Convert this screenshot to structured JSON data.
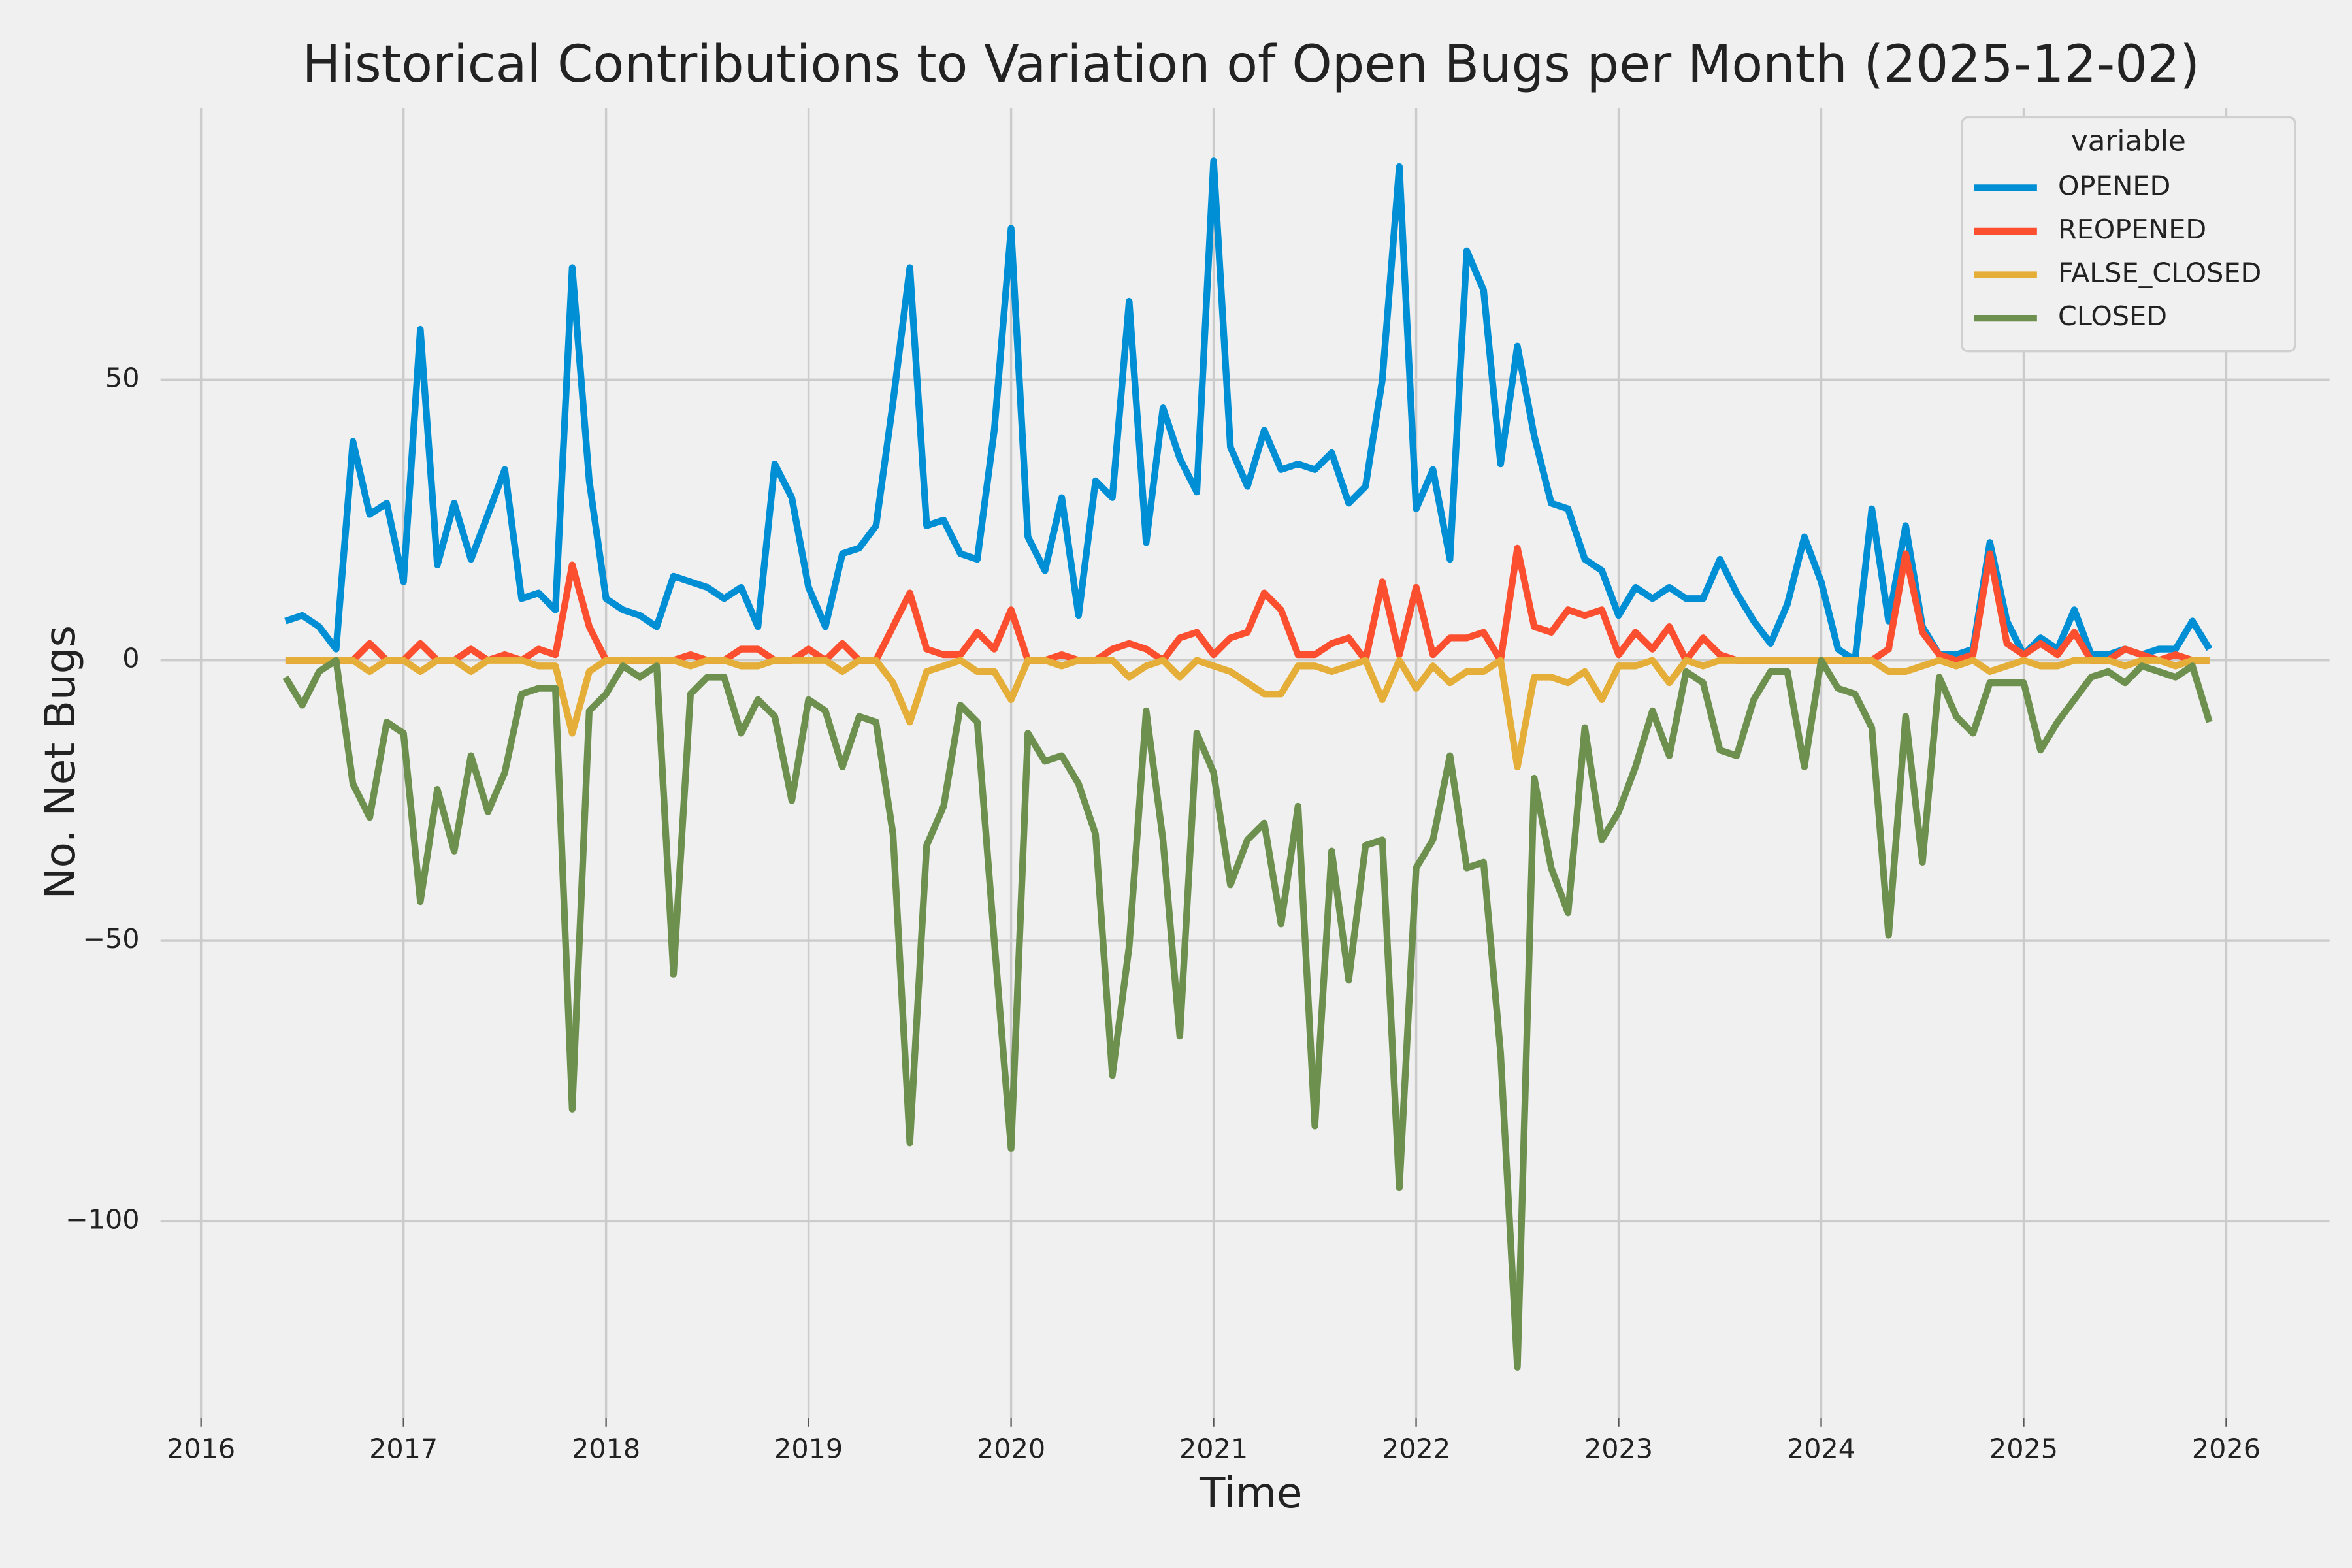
{
  "chart_data": {
    "type": "line",
    "title": "Historical Contributions to Variation of Open Bugs per Month (2025-12-02)",
    "xlabel": "Time",
    "ylabel": "No. Net Bugs",
    "legend_title": "variable",
    "legend_loc": "upper right",
    "grid": true,
    "xlim": [
      2015.8,
      2026.51
    ],
    "ylim": [
      -135,
      98.4
    ],
    "xticks": [
      2016,
      2017,
      2018,
      2019,
      2020,
      2021,
      2022,
      2023,
      2024,
      2025,
      2026
    ],
    "yticks": [
      {
        "value": -100,
        "label": "−100"
      },
      {
        "value": -50,
        "label": "−50"
      },
      0,
      50
    ],
    "x": [
      2016.417,
      2016.5,
      2016.583,
      2016.667,
      2016.75,
      2016.833,
      2016.917,
      2017,
      2017.083,
      2017.167,
      2017.25,
      2017.333,
      2017.417,
      2017.5,
      2017.583,
      2017.667,
      2017.75,
      2017.833,
      2017.917,
      2018,
      2018.083,
      2018.167,
      2018.25,
      2018.333,
      2018.417,
      2018.5,
      2018.583,
      2018.667,
      2018.75,
      2018.833,
      2018.917,
      2019,
      2019.083,
      2019.167,
      2019.25,
      2019.333,
      2019.417,
      2019.5,
      2019.583,
      2019.667,
      2019.75,
      2019.833,
      2019.917,
      2020,
      2020.083,
      2020.167,
      2020.25,
      2020.333,
      2020.417,
      2020.5,
      2020.583,
      2020.667,
      2020.75,
      2020.833,
      2020.917,
      2021,
      2021.083,
      2021.167,
      2021.25,
      2021.333,
      2021.417,
      2021.5,
      2021.583,
      2021.667,
      2021.75,
      2021.833,
      2021.917,
      2022,
      2022.083,
      2022.167,
      2022.25,
      2022.333,
      2022.417,
      2022.5,
      2022.583,
      2022.667,
      2022.75,
      2022.833,
      2022.917,
      2023,
      2023.083,
      2023.167,
      2023.25,
      2023.333,
      2023.417,
      2023.5,
      2023.583,
      2023.667,
      2023.75,
      2023.833,
      2023.917,
      2024,
      2024.083,
      2024.167,
      2024.25,
      2024.333,
      2024.417,
      2024.5,
      2024.583,
      2024.667,
      2024.75,
      2024.833,
      2024.917,
      2025,
      2025.083,
      2025.167,
      2025.25,
      2025.333,
      2025.417,
      2025.5,
      2025.583,
      2025.667,
      2025.75,
      2025.833,
      2025.917
    ],
    "series": [
      {
        "name": "OPENED",
        "color": "#008fd5",
        "values": [
          7,
          8,
          6,
          2,
          39,
          26,
          28,
          14,
          59,
          17,
          28,
          18,
          26,
          34,
          11,
          12,
          9,
          70,
          32,
          11,
          9,
          8,
          6,
          15,
          14,
          13,
          11,
          13,
          6,
          35,
          29,
          13,
          6,
          19,
          20,
          24,
          46,
          70,
          24,
          25,
          19,
          18,
          41,
          77,
          22,
          16,
          29,
          8,
          32,
          29,
          64,
          21,
          45,
          36,
          30,
          89,
          38,
          31,
          41,
          34,
          35,
          34,
          37,
          28,
          31,
          50,
          88,
          27,
          34,
          18,
          73,
          66,
          35,
          56,
          40,
          28,
          27,
          18,
          16,
          8,
          13,
          11,
          13,
          11,
          11,
          18,
          12,
          7,
          3,
          10,
          22,
          14,
          2,
          0,
          27,
          7,
          24,
          6,
          1,
          1,
          2,
          21,
          7,
          1,
          4,
          2,
          9,
          1,
          1,
          2,
          1,
          2,
          2,
          7,
          2
        ]
      },
      {
        "name": "REOPENED",
        "color": "#fc4f30",
        "values": [
          0,
          0,
          0,
          0,
          0,
          3,
          0,
          0,
          3,
          0,
          0,
          2,
          0,
          1,
          0,
          2,
          1,
          17,
          6,
          0,
          0,
          0,
          0,
          0,
          1,
          0,
          0,
          2,
          2,
          0,
          0,
          2,
          0,
          3,
          0,
          0,
          6,
          12,
          2,
          1,
          1,
          5,
          2,
          9,
          0,
          0,
          1,
          0,
          0,
          2,
          3,
          2,
          0,
          4,
          5,
          1,
          4,
          5,
          12,
          9,
          1,
          1,
          3,
          4,
          0,
          14,
          1,
          13,
          1,
          4,
          4,
          5,
          0,
          20,
          6,
          5,
          9,
          8,
          9,
          1,
          5,
          2,
          6,
          0,
          4,
          1,
          0,
          0,
          0,
          0,
          0,
          0,
          0,
          0,
          0,
          2,
          19,
          5,
          1,
          0,
          1,
          19,
          3,
          1,
          3,
          1,
          5,
          0,
          0,
          2,
          1,
          0,
          1,
          0,
          0
        ]
      },
      {
        "name": "FALSE_CLOSED",
        "color": "#e5ae38",
        "values": [
          0,
          0,
          0,
          0,
          0,
          -2,
          0,
          0,
          -2,
          0,
          0,
          -2,
          0,
          0,
          0,
          -1,
          -1,
          -13,
          -2,
          0,
          0,
          0,
          0,
          0,
          -1,
          0,
          0,
          -1,
          -1,
          0,
          0,
          0,
          0,
          -2,
          0,
          0,
          -4,
          -11,
          -2,
          -1,
          0,
          -2,
          -2,
          -7,
          0,
          0,
          -1,
          0,
          0,
          0,
          -3,
          -1,
          0,
          -3,
          0,
          -1,
          -2,
          -4,
          -6,
          -6,
          -1,
          -1,
          -2,
          -1,
          0,
          -7,
          0,
          -5,
          -1,
          -4,
          -2,
          -2,
          0,
          -19,
          -3,
          -3,
          -4,
          -2,
          -7,
          -1,
          -1,
          0,
          -4,
          0,
          -1,
          0,
          0,
          0,
          0,
          0,
          0,
          0,
          0,
          0,
          0,
          -2,
          -2,
          -1,
          0,
          -1,
          0,
          -2,
          -1,
          0,
          -1,
          -1,
          0,
          0,
          0,
          -1,
          0,
          0,
          -1,
          0,
          0
        ]
      },
      {
        "name": "CLOSED",
        "color": "#6d904f",
        "values": [
          -3,
          -8,
          -2,
          0,
          -22,
          -28,
          -11,
          -13,
          -43,
          -23,
          -34,
          -17,
          -27,
          -20,
          -6,
          -5,
          -5,
          -80,
          -9,
          -6,
          -1,
          -3,
          -1,
          -56,
          -6,
          -3,
          -3,
          -13,
          -7,
          -10,
          -25,
          -7,
          -9,
          -19,
          -10,
          -11,
          -31,
          -86,
          -33,
          -26,
          -8,
          -11,
          -50,
          -87,
          -13,
          -18,
          -17,
          -22,
          -31,
          -74,
          -51,
          -9,
          -32,
          -67,
          -13,
          -20,
          -40,
          -32,
          -29,
          -47,
          -26,
          -83,
          -34,
          -57,
          -33,
          -32,
          -94,
          -37,
          -32,
          -17,
          -37,
          -36,
          -70,
          -126,
          -21,
          -37,
          -45,
          -12,
          -32,
          -27,
          -19,
          -9,
          -17,
          -2,
          -4,
          -16,
          -17,
          -7,
          -2,
          -2,
          -19,
          0,
          -5,
          -6,
          -12,
          -49,
          -10,
          -36,
          -3,
          -10,
          -13,
          -4,
          -4,
          -4,
          -16,
          -11,
          -7,
          -3,
          -2,
          -4,
          -1,
          -2,
          -3,
          -1,
          -11
        ]
      }
    ]
  }
}
